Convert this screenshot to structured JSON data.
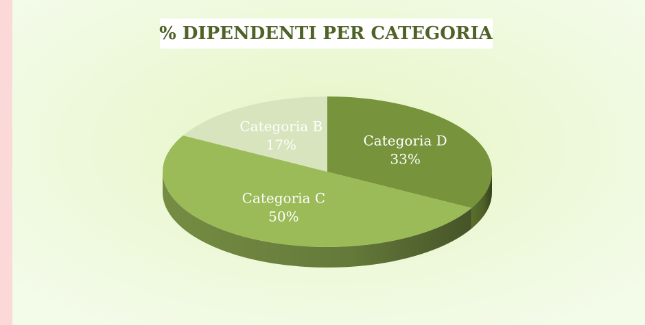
{
  "chart_data": {
    "type": "pie",
    "title": "% DIPENDENTI PER CATEGORIA",
    "categories": [
      "Categoria D",
      "Categoria C",
      "Categoria B"
    ],
    "values": [
      33,
      50,
      17
    ],
    "value_labels": [
      "33%",
      "50%",
      "17%"
    ],
    "colors": [
      "#77933c",
      "#9bbb59",
      "#d7e4bd"
    ]
  }
}
